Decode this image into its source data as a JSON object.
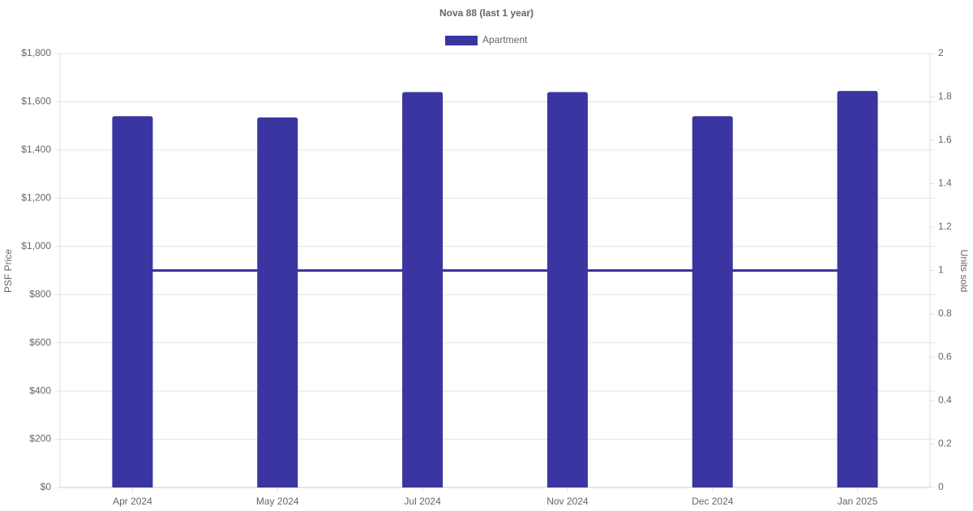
{
  "chart_data": {
    "type": "bar",
    "title": "Nova 88 (last 1 year)",
    "y_label": "PSF Price",
    "y2_label": "Units sold",
    "categories": [
      "Apr 2024",
      "May 2024",
      "Jul 2024",
      "Nov 2024",
      "Dec 2024",
      "Jan 2025"
    ],
    "series": [
      {
        "name": "Apartment",
        "type": "bar",
        "color": "#3a35a0",
        "values": [
          1540,
          1535,
          1640,
          1640,
          1540,
          1645
        ]
      },
      {
        "type": "line",
        "axis": "y2",
        "color": "#3a35a0",
        "values": [
          1,
          1,
          1,
          1,
          1,
          1
        ]
      }
    ],
    "ylim": [
      0,
      1800
    ],
    "yticks": [
      {
        "value": 0,
        "label": "$0"
      },
      {
        "value": 200,
        "label": "$200"
      },
      {
        "value": 400,
        "label": "$400"
      },
      {
        "value": 600,
        "label": "$600"
      },
      {
        "value": 800,
        "label": "$800"
      },
      {
        "value": 1000,
        "label": "$1,000"
      },
      {
        "value": 1200,
        "label": "$1,200"
      },
      {
        "value": 1400,
        "label": "$1,400"
      },
      {
        "value": 1600,
        "label": "$1,600"
      },
      {
        "value": 1800,
        "label": "$1,800"
      }
    ],
    "y2lim": [
      0,
      2
    ],
    "y2ticks": [
      0,
      0.2,
      0.4,
      0.6,
      0.8,
      1,
      1.2,
      1.4,
      1.6,
      1.8,
      2
    ],
    "grid": true,
    "legend": "top"
  }
}
